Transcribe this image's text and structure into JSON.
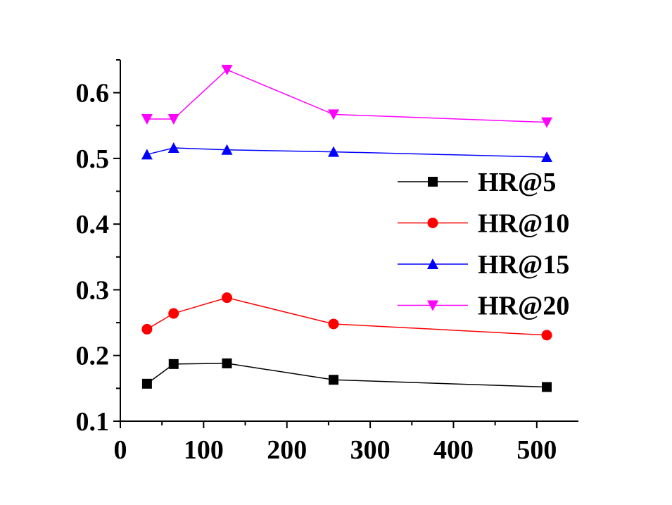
{
  "chart_data": {
    "type": "line",
    "title": "",
    "xlabel": "",
    "ylabel": "",
    "xlim": [
      0,
      550
    ],
    "ylim": [
      0.1,
      0.65
    ],
    "x_ticks": [
      0,
      100,
      200,
      300,
      400,
      500
    ],
    "y_ticks": [
      0.1,
      0.2,
      0.3,
      0.4,
      0.5,
      0.6
    ],
    "x_tick_labels": [
      "0",
      "100",
      "200",
      "300",
      "400",
      "500"
    ],
    "y_tick_labels": [
      "0.1",
      "0.2",
      "0.3",
      "0.4",
      "0.5",
      "0.6"
    ],
    "grid": false,
    "legend_position": "right",
    "x": [
      32,
      64,
      128,
      256,
      512
    ],
    "series": [
      {
        "name": "HR@5",
        "color": "#000000",
        "marker": "square",
        "values": [
          0.157,
          0.187,
          0.188,
          0.163,
          0.152
        ]
      },
      {
        "name": "HR@10",
        "color": "#ff0000",
        "marker": "circle",
        "values": [
          0.24,
          0.264,
          0.288,
          0.248,
          0.231
        ]
      },
      {
        "name": "HR@15",
        "color": "#0000ff",
        "marker": "triangle-up",
        "values": [
          0.506,
          0.516,
          0.513,
          0.51,
          0.502
        ]
      },
      {
        "name": "HR@20",
        "color": "#ff00ff",
        "marker": "triangle-down",
        "values": [
          0.56,
          0.56,
          0.635,
          0.567,
          0.555
        ]
      }
    ]
  }
}
